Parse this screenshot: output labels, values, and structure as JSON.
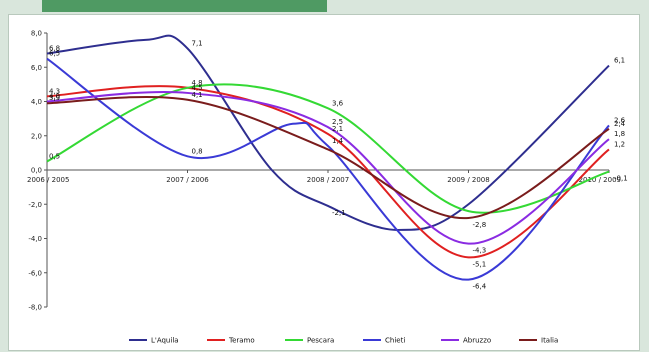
{
  "chart_data": {
    "type": "line",
    "categories": [
      "2006 / 2005",
      "2007 / 2006",
      "2008 / 2007",
      "2009 / 2008",
      "2010 / 2009"
    ],
    "ylim": [
      -8.0,
      8.0
    ],
    "yticks": [
      -8.0,
      -6.0,
      -4.0,
      -2.0,
      0.0,
      2.0,
      4.0,
      6.0,
      8.0
    ],
    "ytick_labels": [
      "-8,0",
      "-6,0",
      "-4,0",
      "-2,0",
      "0,0",
      "2,0",
      "4,0",
      "6,0",
      "8,0"
    ],
    "legend_position": "bottom",
    "series": [
      {
        "name": "L'Aquila",
        "color": "#2e2e8f",
        "points": [
          {
            "x": 0.0,
            "y": 6.8,
            "label": "6,8"
          },
          {
            "x": 0.7,
            "y": 7.6
          },
          {
            "x": 1.0,
            "y": 7.1,
            "label": "7,1"
          },
          {
            "x": 1.6,
            "y": 0.0
          },
          {
            "x": 2.0,
            "y": -2.1,
            "label": "-2,1"
          },
          {
            "x": 2.5,
            "y": -3.5
          },
          {
            "x": 3.0,
            "y": -2.0
          },
          {
            "x": 4.0,
            "y": 6.1,
            "label": "6,1"
          }
        ]
      },
      {
        "name": "Teramo",
        "color": "#e02020",
        "points": [
          {
            "x": 0.0,
            "y": 4.3,
            "label": "4,3"
          },
          {
            "x": 1.0,
            "y": 4.8,
            "label": "4,8"
          },
          {
            "x": 2.0,
            "y": 2.1,
            "label": "2,1"
          },
          {
            "x": 3.0,
            "y": -5.1,
            "label": "-5,1"
          },
          {
            "x": 4.0,
            "y": 1.2,
            "label": "1,2"
          }
        ]
      },
      {
        "name": "Pescara",
        "color": "#34d934",
        "points": [
          {
            "x": 0.0,
            "y": 0.5,
            "label": "0,5"
          },
          {
            "x": 1.0,
            "y": 4.8
          },
          {
            "x": 2.0,
            "y": 3.6,
            "label": "3,6"
          },
          {
            "x": 3.0,
            "y": -2.4
          },
          {
            "x": 4.0,
            "y": -0.1,
            "label": "-0,1"
          }
        ]
      },
      {
        "name": "Chieti",
        "color": "#3a3ad6",
        "points": [
          {
            "x": 0.0,
            "y": 6.5,
            "label": "6,5"
          },
          {
            "x": 1.0,
            "y": 0.8,
            "label": "0,8"
          },
          {
            "x": 1.75,
            "y": 2.7
          },
          {
            "x": 2.0,
            "y": 1.4,
            "label": "1,4"
          },
          {
            "x": 3.0,
            "y": -6.4,
            "label": "-6,4"
          },
          {
            "x": 4.0,
            "y": 2.6,
            "label": "2,6"
          }
        ]
      },
      {
        "name": "Abruzzo",
        "color": "#8a2be2",
        "points": [
          {
            "x": 0.0,
            "y": 4.0,
            "label": "4,0"
          },
          {
            "x": 1.0,
            "y": 4.5,
            "label": "4,5"
          },
          {
            "x": 2.0,
            "y": 2.5,
            "label": "2,5"
          },
          {
            "x": 3.0,
            "y": -4.3,
            "label": "-4,3"
          },
          {
            "x": 4.0,
            "y": 1.8,
            "label": "1,8"
          }
        ]
      },
      {
        "name": "Italia",
        "color": "#7a1c1c",
        "points": [
          {
            "x": 0.0,
            "y": 3.9,
            "label": "3,9"
          },
          {
            "x": 1.0,
            "y": 4.1,
            "label": "4,1"
          },
          {
            "x": 2.0,
            "y": 1.2
          },
          {
            "x": 3.0,
            "y": -2.8,
            "label": "-2,8"
          },
          {
            "x": 4.0,
            "y": 2.4,
            "label": "2,4"
          }
        ]
      }
    ]
  }
}
